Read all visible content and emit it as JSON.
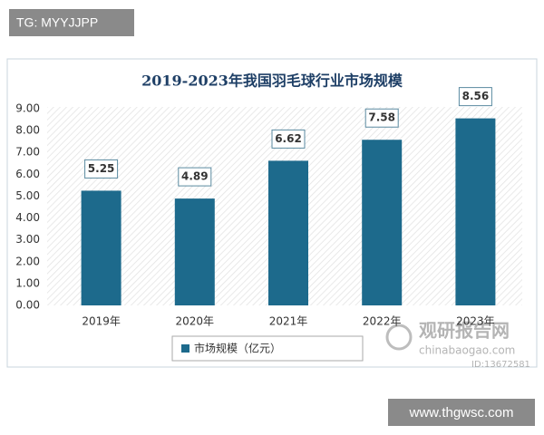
{
  "tags": {
    "top_left": "TG: MYYJJPP",
    "bottom_right": "www.thgwsc.com"
  },
  "watermark": {
    "brand": "观研报告网",
    "site": "chinabaogao.com",
    "id": "ID:13672581"
  },
  "chart_data": {
    "type": "bar",
    "title": "2019-2023年我国羽毛球行业市场规模",
    "categories": [
      "2019年",
      "2020年",
      "2021年",
      "2022年",
      "2023年"
    ],
    "series": [
      {
        "name": "市场规模（亿元）",
        "color": "#1d6a8c",
        "values": [
          5.25,
          4.89,
          6.62,
          7.58,
          8.56
        ]
      }
    ],
    "ylim": [
      0,
      9
    ],
    "yticks": [
      {
        "value": 0,
        "label": "0.00"
      },
      {
        "value": 1,
        "label": "1.00"
      },
      {
        "value": 2,
        "label": "2.00"
      },
      {
        "value": 3,
        "label": "3.00"
      },
      {
        "value": 4,
        "label": "4.00"
      },
      {
        "value": 5,
        "label": "5.00"
      },
      {
        "value": 6,
        "label": "6.00"
      },
      {
        "value": 7,
        "label": "7.00"
      },
      {
        "value": 8,
        "label": "8.00"
      },
      {
        "value": 9,
        "label": "9.00"
      }
    ],
    "grid": false,
    "legend": "bottom"
  }
}
